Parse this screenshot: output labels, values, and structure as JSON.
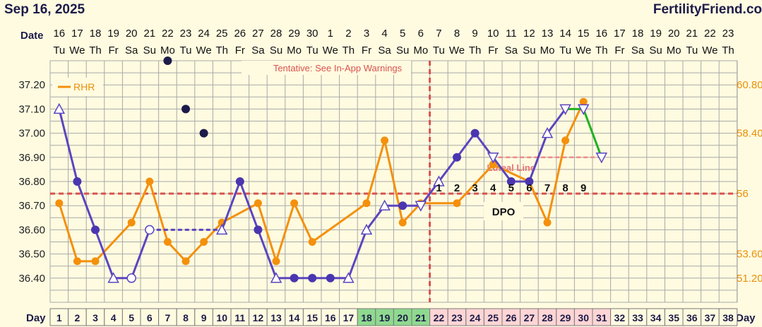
{
  "header": {
    "date": "Sep 16, 2025",
    "brand": "FertilityFriend.co",
    "date_label": "Date",
    "day_label": "Day"
  },
  "dates": [
    "16",
    "17",
    "18",
    "19",
    "20",
    "21",
    "22",
    "23",
    "24",
    "25",
    "26",
    "27",
    "28",
    "29",
    "30",
    "1",
    "2",
    "3",
    "4",
    "5",
    "6",
    "7",
    "8",
    "9",
    "10",
    "11",
    "12",
    "13",
    "14",
    "15",
    "16",
    "17",
    "18",
    "19",
    "20",
    "21",
    "22",
    "23"
  ],
  "weekdays": [
    "Tu",
    "We",
    "Th",
    "Fr",
    "Sa",
    "Su",
    "Mo",
    "Tu",
    "We",
    "Th",
    "Fr",
    "Sa",
    "Su",
    "Mo",
    "Tu",
    "We",
    "Th",
    "Fr",
    "Sa",
    "Su",
    "Mo",
    "Tu",
    "We",
    "Th",
    "Fr",
    "Sa",
    "Su",
    "Mo",
    "Tu",
    "We",
    "Th",
    "Fr",
    "Sa",
    "Su",
    "Mo",
    "Tu",
    "We",
    "Th"
  ],
  "colors": {
    "temp_line": "#5b45c0",
    "temp_fill": "#4a36b0",
    "outlier": "#1d1b4a",
    "rhr": "#f4900c",
    "green": "#22b022",
    "coverline": "#d9534f",
    "fertile_cell": "#8fd98f",
    "luteal_cell": "#ffd5d5",
    "plot_bg": "#fffbe0",
    "grid": "#a9a9a9"
  },
  "chart_data": {
    "type": "line",
    "x_label": "Day",
    "days": [
      1,
      2,
      3,
      4,
      5,
      6,
      7,
      8,
      9,
      10,
      11,
      12,
      13,
      14,
      15,
      16,
      17,
      18,
      19,
      20,
      21,
      22,
      23,
      24,
      25,
      26,
      27,
      28,
      29,
      30,
      31,
      32,
      33,
      34,
      35,
      36,
      37,
      38
    ],
    "fertile_days": [
      18,
      19,
      20,
      21
    ],
    "luteal_days": [
      22,
      23,
      24,
      25,
      26,
      27,
      28,
      29,
      30,
      31
    ],
    "temp_axis": {
      "min": 36.3,
      "max": 37.3,
      "ticks": [
        "37.20",
        "37.10",
        "37.00",
        "36.90",
        "36.80",
        "36.70",
        "36.60",
        "36.50",
        "36.40"
      ]
    },
    "rhr_axis": {
      "ticks": [
        "60.80",
        "58.40",
        "56",
        "53.60",
        "51.20"
      ]
    },
    "temperature": [
      {
        "day": 1,
        "value": 37.1,
        "marker": "open-triangle"
      },
      {
        "day": 2,
        "value": 36.8,
        "marker": "filled"
      },
      {
        "day": 3,
        "value": 36.6,
        "marker": "filled"
      },
      {
        "day": 4,
        "value": 36.4,
        "marker": "open-triangle"
      },
      {
        "day": 5,
        "value": 36.4,
        "marker": "open"
      },
      {
        "day": 6,
        "value": 36.6,
        "marker": "open"
      },
      {
        "day": 10,
        "value": 36.6,
        "marker": "open-triangle"
      },
      {
        "day": 11,
        "value": 36.8,
        "marker": "filled"
      },
      {
        "day": 12,
        "value": 36.6,
        "marker": "filled"
      },
      {
        "day": 13,
        "value": 36.4,
        "marker": "open-triangle"
      },
      {
        "day": 14,
        "value": 36.4,
        "marker": "filled"
      },
      {
        "day": 15,
        "value": 36.4,
        "marker": "filled"
      },
      {
        "day": 16,
        "value": 36.4,
        "marker": "filled"
      },
      {
        "day": 17,
        "value": 36.4,
        "marker": "open-triangle"
      },
      {
        "day": 18,
        "value": 36.6,
        "marker": "open-triangle"
      },
      {
        "day": 19,
        "value": 36.7,
        "marker": "open-triangle"
      },
      {
        "day": 20,
        "value": 36.7,
        "marker": "filled"
      },
      {
        "day": 21,
        "value": 36.7,
        "marker": "open-down-triangle"
      },
      {
        "day": 22,
        "value": 36.8,
        "marker": "open-triangle"
      },
      {
        "day": 23,
        "value": 36.9,
        "marker": "filled"
      },
      {
        "day": 24,
        "value": 37.0,
        "marker": "filled"
      },
      {
        "day": 25,
        "value": 36.9,
        "marker": "open-down-triangle"
      },
      {
        "day": 26,
        "value": 36.8,
        "marker": "filled"
      },
      {
        "day": 27,
        "value": 36.8,
        "marker": "filled"
      },
      {
        "day": 28,
        "value": 37.0,
        "marker": "open-triangle"
      },
      {
        "day": 29,
        "value": 37.1,
        "marker": "open-down-triangle"
      },
      {
        "day": 30,
        "value": 37.1,
        "marker": "open-down-triangle"
      },
      {
        "day": 31,
        "value": 36.9,
        "marker": "open-down-triangle"
      }
    ],
    "temp_dashed_segment": [
      6,
      10
    ],
    "temp_green_segments": [
      [
        29,
        30
      ],
      [
        30,
        31
      ]
    ],
    "outliers": [
      {
        "day": 7,
        "value": 37.3
      },
      {
        "day": 8,
        "value": 37.1
      },
      {
        "day": 9,
        "value": 37.0
      }
    ],
    "rhr_legend": "RHR",
    "rhr": [
      {
        "day": 1,
        "value": 36.71
      },
      {
        "day": 2,
        "value": 36.47
      },
      {
        "day": 3,
        "value": 36.47
      },
      {
        "day": 5,
        "value": 36.63
      },
      {
        "day": 6,
        "value": 36.8
      },
      {
        "day": 7,
        "value": 36.55
      },
      {
        "day": 8,
        "value": 36.47
      },
      {
        "day": 9,
        "value": 36.55
      },
      {
        "day": 10,
        "value": 36.63
      },
      {
        "day": 12,
        "value": 36.71
      },
      {
        "day": 13,
        "value": 36.47
      },
      {
        "day": 14,
        "value": 36.71
      },
      {
        "day": 15,
        "value": 36.55
      },
      {
        "day": 18,
        "value": 36.71
      },
      {
        "day": 19,
        "value": 36.97
      },
      {
        "day": 20,
        "value": 36.63
      },
      {
        "day": 21,
        "value": 36.71
      },
      {
        "day": 23,
        "value": 36.71
      },
      {
        "day": 25,
        "value": 36.87
      },
      {
        "day": 27,
        "value": 36.8
      },
      {
        "day": 28,
        "value": 36.63
      },
      {
        "day": 29,
        "value": 36.97
      },
      {
        "day": 30,
        "value": 37.13
      }
    ],
    "coverline": 36.75,
    "ovulation_day": 21,
    "luteal_line_value": 36.9,
    "luteal_line_label": "Luteal Line",
    "luteal_line_range": [
      25,
      31
    ],
    "dpo_label": "DPO",
    "dpo_numbers": [
      "1",
      "2",
      "3",
      "4",
      "5",
      "6",
      "7",
      "8",
      "9"
    ],
    "dpo_start_day": 22,
    "note": "Tentative: See In-App Warnings"
  }
}
